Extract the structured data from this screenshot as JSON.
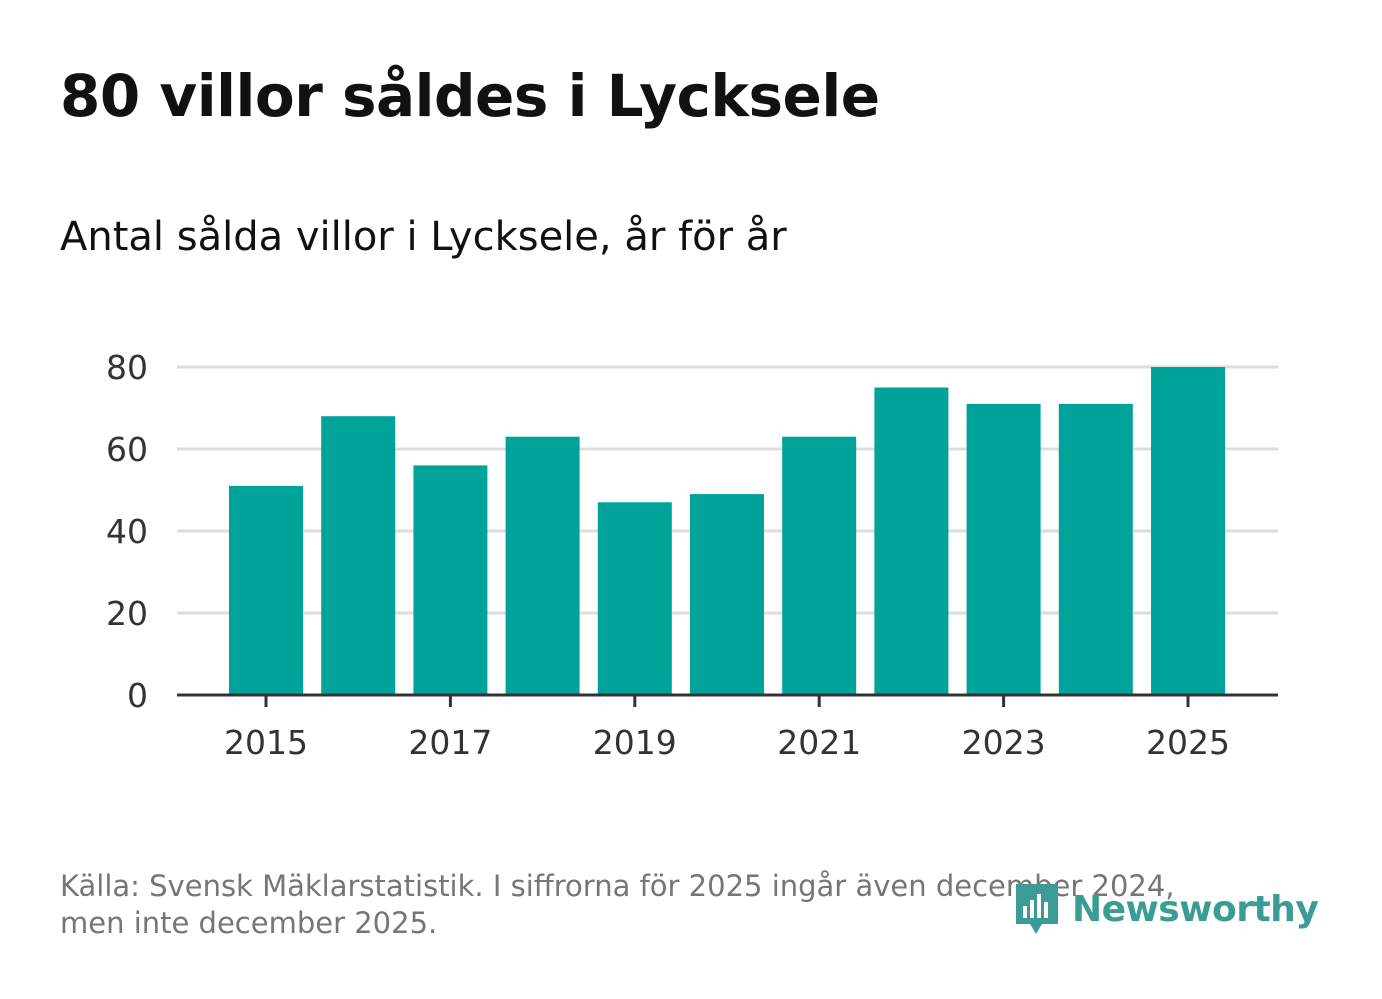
{
  "header": {
    "title": "80 villor såldes i Lycksele",
    "subtitle": "Antal sålda villor i Lycksele, år för år"
  },
  "footer": {
    "source_line1": "Källa: Svensk Mäklarstatistik. I siffrorna för 2025 ingår även december 2024,",
    "source_line2": "men inte december 2025.",
    "brand": "Newsworthy"
  },
  "colors": {
    "bar": "#00a39a",
    "grid": "#dddddd",
    "axis": "#333333",
    "brand": "#3a9c94"
  },
  "chart_data": {
    "type": "bar",
    "title": "Antal sålda villor i Lycksele, år för år",
    "xlabel": "",
    "ylabel": "",
    "categories": [
      "2015",
      "2016",
      "2017",
      "2018",
      "2019",
      "2020",
      "2021",
      "2022",
      "2023",
      "2024",
      "2025"
    ],
    "values": [
      51,
      68,
      56,
      63,
      47,
      49,
      63,
      75,
      71,
      71,
      80
    ],
    "ylim": [
      0,
      80
    ],
    "yticks": [
      0,
      20,
      40,
      60,
      80
    ],
    "xtick_labels": [
      "2015",
      "2017",
      "2019",
      "2021",
      "2023",
      "2025"
    ],
    "grid": true
  }
}
